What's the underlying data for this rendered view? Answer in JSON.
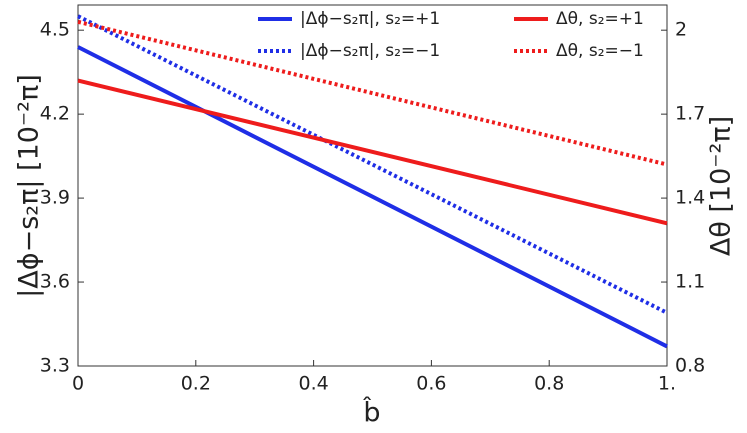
{
  "chart_data": {
    "type": "line",
    "x_label": "b̂",
    "y_label": "|Δϕ−s₂π| [10⁻²π]",
    "y2_label": "Δθ [10⁻²π]",
    "x": [
      0,
      1
    ],
    "series": [
      {
        "name": "|Δϕ−s₂π|, s₂=+1",
        "color": "#1f2ee6",
        "line_style": "solid",
        "values": [
          4.44,
          3.37
        ]
      },
      {
        "name": "|Δϕ−s₂π|, s₂=−1",
        "color": "#1f2ee6",
        "line_style": "dotted",
        "values": [
          4.55,
          3.49
        ]
      },
      {
        "name": "Δθ, s₂=+1",
        "color": "#ee1c1c",
        "line_style": "solid",
        "axis": "y2",
        "values": [
          1.82,
          1.31
        ]
      },
      {
        "name": "Δθ, s₂=−1",
        "color": "#ee1c1c",
        "line_style": "dotted",
        "axis": "y2",
        "values": [
          2.03,
          1.52
        ]
      }
    ],
    "xlim": [
      0,
      1
    ],
    "xticks": [
      0,
      0.2,
      0.4,
      0.6,
      0.8,
      {
        "value": 1,
        "label": "1."
      }
    ],
    "ylim": [
      3.3,
      4.59
    ],
    "yticks": [
      3.3,
      3.6,
      3.9,
      4.2,
      4.5
    ],
    "y2lim": [
      0.8,
      2.09
    ],
    "y2ticks": [
      0.8,
      1.1,
      1.4,
      1.7,
      2
    ],
    "legend": "top"
  }
}
